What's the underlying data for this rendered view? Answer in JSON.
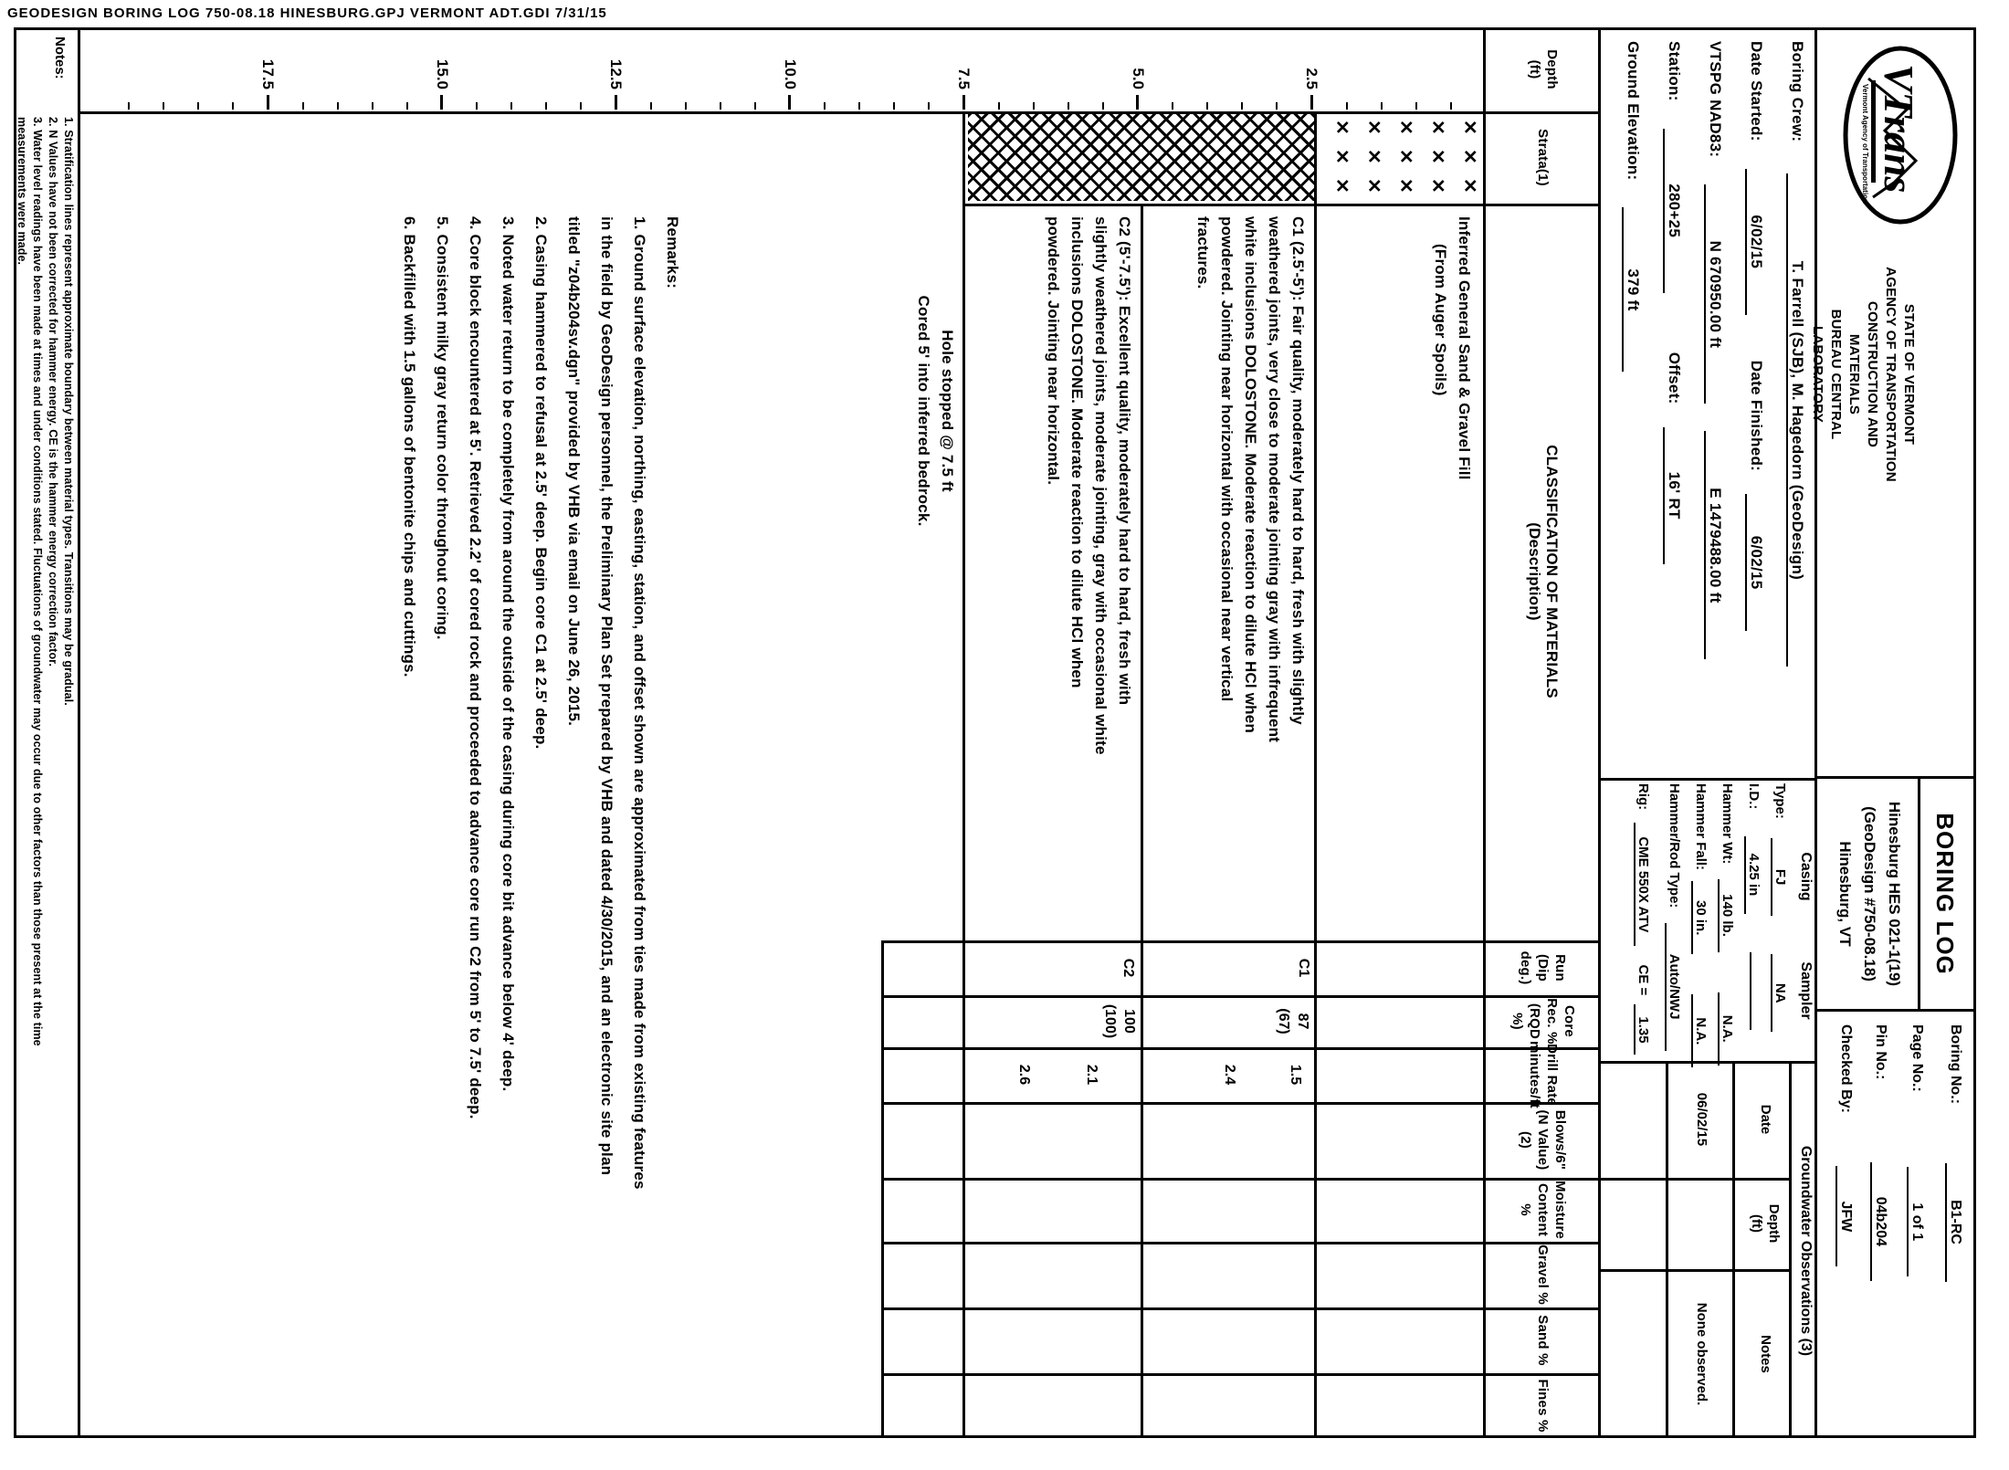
{
  "sidebar_note": "GEODESIGN BORING LOG   750-08.18 HINESBURG.GPJ   VERMONT ADT.GDI   7/31/15",
  "logo": {
    "brand": "VTrans",
    "tagline": "Vermont Agency of Transportation"
  },
  "agency": {
    "line1": "STATE OF VERMONT",
    "line2": "AGENCY OF TRANSPORTATION",
    "line3": "CONSTRUCTION AND MATERIALS",
    "line4": "BUREAU CENTRAL LABORATORY"
  },
  "title_block": {
    "form_title": "BORING LOG",
    "project_line1": "Hinesburg HES 021-1(19)",
    "project_line2": "(GeoDesign #750-08.18)",
    "project_line3": "Hinesburg, VT",
    "boring_no_label": "Boring No.:",
    "boring_no": "B1-RC",
    "page_no_label": "Page No.:",
    "page_no": "1 of 1",
    "pin_no_label": "Pin No.:",
    "pin_no": "04b204",
    "checked_by_label": "Checked By:",
    "checked_by": "JFW"
  },
  "info": {
    "boring_crew_label": "Boring Crew:",
    "boring_crew": "T. Farrell (SJB), M. Hagedorn (GeoDesign)",
    "date_started_label": "Date Started:",
    "date_started": "6/02/15",
    "date_finished_label": "Date Finished:",
    "date_finished": "6/02/15",
    "vtspg_label": "VTSPG NAD83:",
    "vtspg_n": "N 670950.00 ft",
    "vtspg_e": "E 1479488.00 ft",
    "station_label": "Station:",
    "station": "280+25",
    "offset_label": "Offset:",
    "offset": "16' RT",
    "ground_elev_label": "Ground Elevation:",
    "ground_elev": "379 ft"
  },
  "casing_sampler": {
    "casing_header": "Casing",
    "sampler_header": "Sampler",
    "type_label": "Type:",
    "type_casing": "FJ",
    "type_sampler": "NA",
    "id_label": "I.D.:",
    "id_casing": "4.25 in",
    "id_sampler": "",
    "hammer_wt_label": "Hammer Wt:",
    "hammer_wt_casing": "140 lb.",
    "hammer_wt_sampler": "N.A.",
    "hammer_fall_label": "Hammer Fall:",
    "hammer_fall_casing": "30 in.",
    "hammer_fall_sampler": "N.A.",
    "rod_label": "Hammer/Rod Type:",
    "rod_value": "Auto/NWJ",
    "rig_label": "Rig:",
    "rig_value": "CME 550X ATV",
    "ce_label": "CE =",
    "ce_value": "1.35"
  },
  "groundwater": {
    "title": "Groundwater Observations (3)",
    "col_date": "Date",
    "col_depth": "Depth\n(ft)",
    "col_notes": "Notes",
    "row1_date": "06/02/15",
    "row1_depth": "",
    "row1_notes": "None observed."
  },
  "table": {
    "columns": {
      "c0": "Depth\n(ft)",
      "c1": "Strata(1)",
      "c2": "CLASSIFICATION OF MATERIALS\n(Description)",
      "c3": "Run\n(Dip deg.)",
      "c4": "Core Rec. %\n(RQD %)",
      "c5": "Drill Rate\nminutes/ft",
      "c6": "Blows/6\"\n(N Value)(2)",
      "c7": "Moisture\nContent %",
      "c8": "Gravel %",
      "c9": "Sand %",
      "c10": "Fines %"
    }
  },
  "depth_scale": {
    "labels": [
      {
        "text": "2.5",
        "ft": 2.5
      },
      {
        "text": "5.0",
        "ft": 5.0
      },
      {
        "text": "7.5",
        "ft": 7.5
      },
      {
        "text": "10.0",
        "ft": 10.0
      },
      {
        "text": "12.5",
        "ft": 12.5
      },
      {
        "text": "15.0",
        "ft": 15.0
      },
      {
        "text": "17.5",
        "ft": 17.5
      }
    ]
  },
  "strata": {
    "fill_symbol": "✕",
    "fill_rows": 5,
    "fill_cols": 3
  },
  "classification": {
    "fill_line1": "Inferred General Sand & Gravel Fill",
    "fill_line2": "(From Auger Spoils)",
    "c1_lines": {
      "l0": "C1 (2.5'-5'): Fair quality, moderately hard to hard, fresh with slightly",
      "l1": "weathered joints, very close to moderate jointing gray with infrequent",
      "l2": "white inclusions DOLOSTONE. Moderate reaction to dilute HCl when",
      "l3": "powdered. Jointing near horizontal with occasional near vertical",
      "l4": "fractures."
    },
    "c2_lines": {
      "l0": "C2 (5'-7.5'): Excellent quality, moderately hard to hard, fresh with",
      "l1": "slightly weathered joints, moderate jointing, gray with occasional white",
      "l2": "inclusions DOLOSTONE. Moderate reaction to dilute HCl when",
      "l3": "powdered. Jointing near horizontal."
    },
    "hole_stopped_line1": "Hole stopped @ 7.5 ft",
    "hole_stopped_line2": "Cored 5' into inferred bedrock."
  },
  "runs": {
    "r1": {
      "id": "C1",
      "core_rec": "87",
      "rqd": "(67)"
    },
    "r2": {
      "id": "C2",
      "core_rec": "100",
      "rqd": "(100)"
    }
  },
  "drill_rates": {
    "d0": "1.5",
    "d1": "2.4",
    "d2": "2.1",
    "d3": "2.6"
  },
  "remarks": {
    "lines": {
      "l0": "Remarks:",
      "l1": "1. Ground surface elevation, northing, easting, station, and offset shown are approximated from ties made from existing features",
      "l2": "in the field by GeoDesign personnel, the Preliminary Plan Set prepared by VHB and dated 4/30/2015, and an electronic site plan",
      "l3": "titled \"z04b204sv.dgn\" provided by VHB via email on June 26, 2015.",
      "l4": "2. Casing hammered to refusal at 2.5' deep. Begin core C1 at 2.5' deep.",
      "l5": "3. Noted water return to be completely from around the outside of the casing during core bit advance below 4' deep.",
      "l6": "4. Core block encountered at 5'. Retrieved 2.2' of cored rock and proceeded to advance core run C2 from 5' to 7.5' deep.",
      "l7": "5. Consistent milky gray return color throughout coring.",
      "l8": "6. Backfilled with 1.5 gallons of bentonite chips and cuttings."
    }
  },
  "notes": {
    "label": "Notes:",
    "lines": {
      "l0": "1. Stratification lines represent approximate boundary between material types. Transitions may be gradual.",
      "l1": "2. N Values have not been corrected for hammer energy. CE is the hammer energy correction factor.",
      "l2": "3. Water level readings have been made at times and under conditions stated. Fluctuations of groundwater may occur due to other factors than those present at the time",
      "l3": "measurements were made."
    }
  }
}
